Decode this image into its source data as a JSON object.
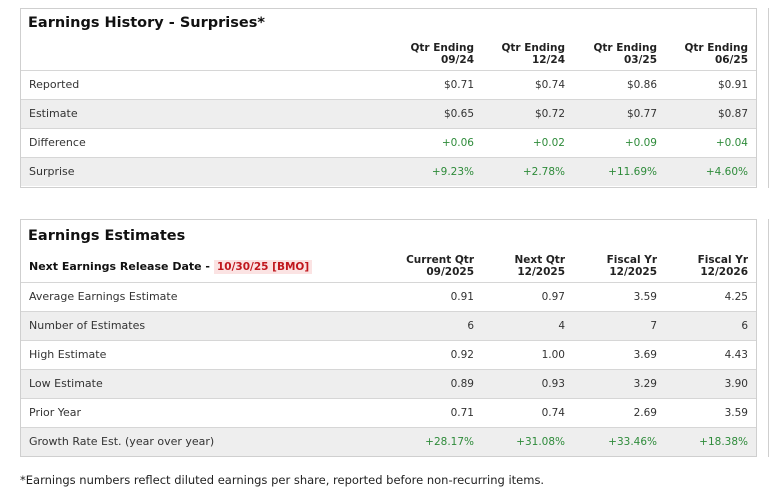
{
  "history": {
    "title": "Earnings History - Surprises*",
    "columns": [
      {
        "line1": "Qtr Ending",
        "line2": "09/24"
      },
      {
        "line1": "Qtr Ending",
        "line2": "12/24"
      },
      {
        "line1": "Qtr Ending",
        "line2": "03/25"
      },
      {
        "line1": "Qtr Ending",
        "line2": "06/25"
      }
    ],
    "rows": [
      {
        "label": "Reported",
        "values": [
          "$0.71",
          "$0.74",
          "$0.86",
          "$0.91"
        ]
      },
      {
        "label": "Estimate",
        "values": [
          "$0.65",
          "$0.72",
          "$0.77",
          "$0.87"
        ]
      },
      {
        "label": "Difference",
        "values": [
          "+0.06",
          "+0.02",
          "+0.09",
          "+0.04"
        ]
      },
      {
        "label": "Surprise",
        "values": [
          "+9.23%",
          "+2.78%",
          "+11.69%",
          "+4.60%"
        ]
      }
    ]
  },
  "estimates": {
    "title": "Earnings Estimates",
    "release_label": "Next Earnings Release Date -",
    "release_value": "10/30/25 [BMO]",
    "columns": [
      {
        "line1": "Current Qtr",
        "line2": "09/2025"
      },
      {
        "line1": "Next Qtr",
        "line2": "12/2025"
      },
      {
        "line1": "Fiscal Yr",
        "line2": "12/2025"
      },
      {
        "line1": "Fiscal Yr",
        "line2": "12/2026"
      }
    ],
    "rows": [
      {
        "label": "Average Earnings Estimate",
        "values": [
          "0.91",
          "0.97",
          "3.59",
          "4.25"
        ]
      },
      {
        "label": "Number of Estimates",
        "values": [
          "6",
          "4",
          "7",
          "6"
        ]
      },
      {
        "label": "High Estimate",
        "values": [
          "0.92",
          "1.00",
          "3.69",
          "4.43"
        ]
      },
      {
        "label": "Low Estimate",
        "values": [
          "0.89",
          "0.93",
          "3.29",
          "3.90"
        ]
      },
      {
        "label": "Prior Year",
        "values": [
          "0.71",
          "0.74",
          "2.69",
          "3.59"
        ]
      },
      {
        "label": "Growth Rate Est. (year over year)",
        "values": [
          "+28.17%",
          "+31.08%",
          "+33.46%",
          "+18.38%"
        ]
      }
    ]
  },
  "footnote": "*Earnings numbers reflect diluted earnings per share, reported before non-recurring items.",
  "colors": {
    "positive": "#2e8b3a",
    "badge_text": "#c0171d",
    "badge_bg": "#fbe3e3",
    "row_shade": "#eeeeee"
  }
}
